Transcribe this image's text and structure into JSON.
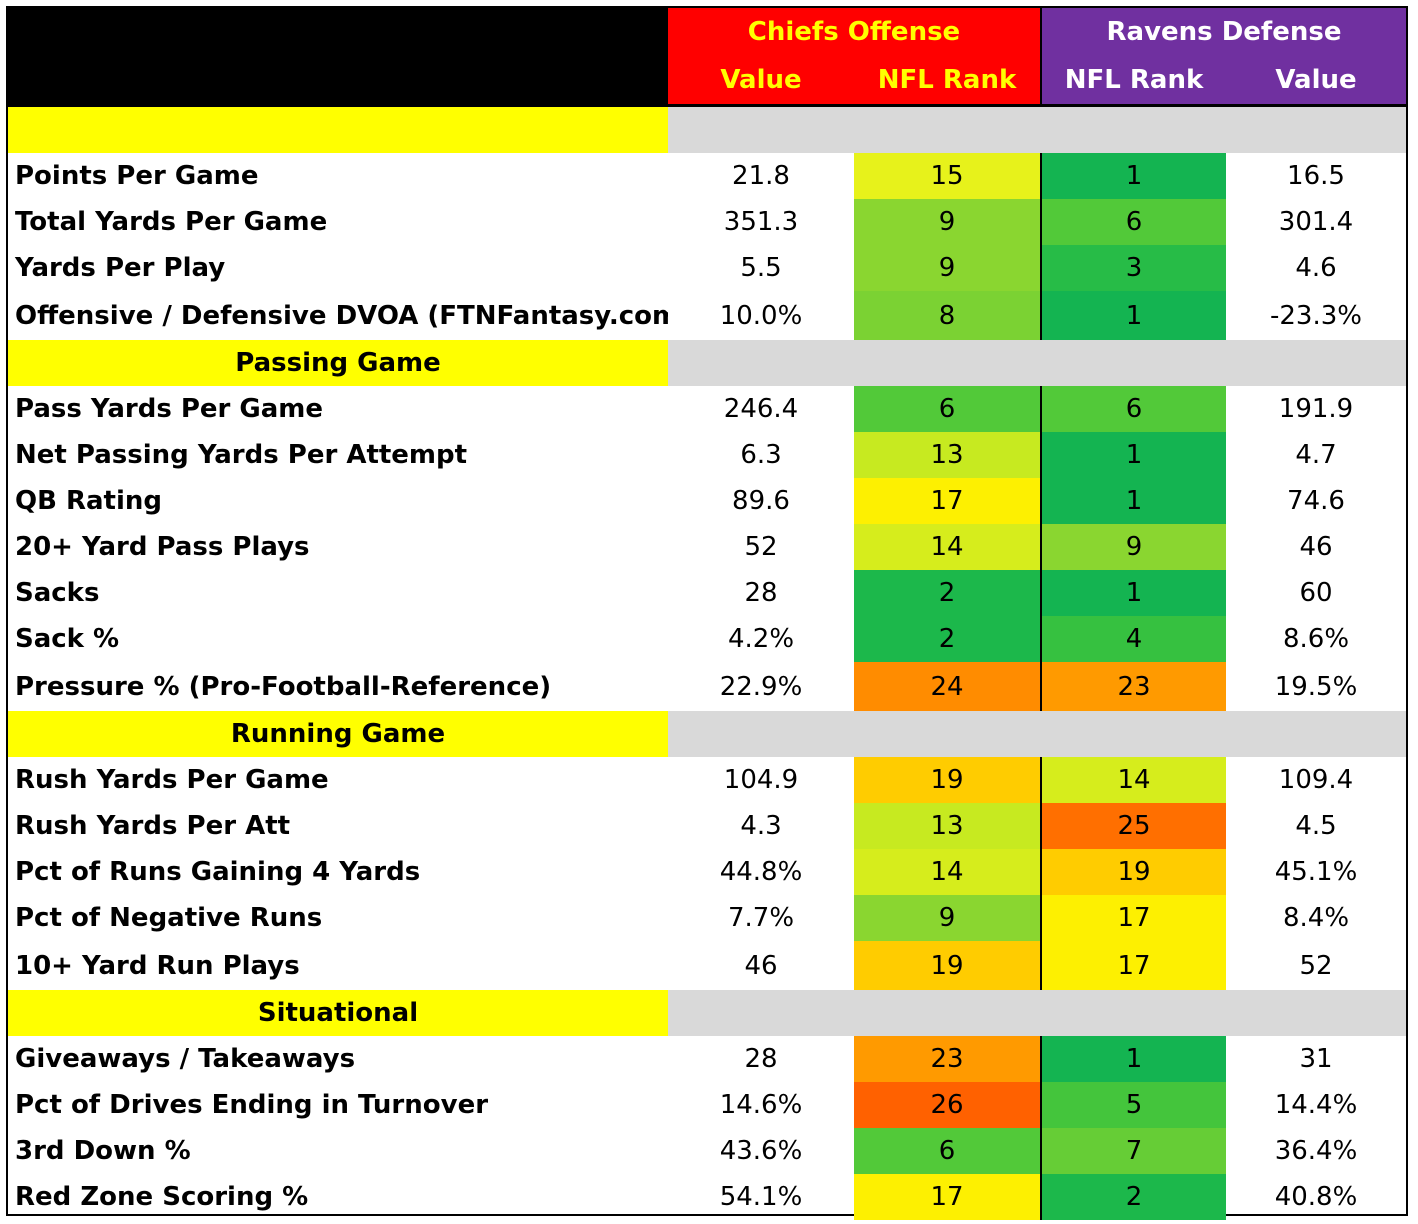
{
  "header": {
    "offense_team": "Chiefs Offense",
    "defense_team": "Ravens Defense",
    "offense_value_label": "Value",
    "offense_rank_label": "NFL Rank",
    "defense_rank_label": "NFL Rank",
    "defense_value_label": "Value"
  },
  "colors": {
    "header_black": "#000000",
    "chiefs_red": "#ff0000",
    "chiefs_text": "#ffff00",
    "ravens_purple": "#7030a0",
    "ravens_text": "#ffffff",
    "section_yellow": "#ffff00",
    "section_gray": "#d9d9d9"
  },
  "sections": [
    {
      "title": "",
      "rows": [
        {
          "stat": "Points Per Game",
          "off_value": "21.8",
          "off_rank": "15",
          "def_rank": "1",
          "def_value": "16.5",
          "off_color": "#e7f21b",
          "def_color": "#14b451"
        },
        {
          "stat": "Total Yards Per Game",
          "off_value": "351.3",
          "off_rank": "9",
          "def_rank": "6",
          "def_value": "301.4",
          "off_color": "#8ad630",
          "def_color": "#52c939"
        },
        {
          "stat": "Yards Per Play",
          "off_value": "5.5",
          "off_rank": "9",
          "def_rank": "3",
          "def_value": "4.6",
          "off_color": "#8ad630",
          "def_color": "#27bc47"
        },
        {
          "stat": "Offensive / Defensive DVOA (FTNFantasy.com)",
          "off_value": "10.0%",
          "off_rank": "8",
          "def_rank": "1",
          "def_value": "-23.3%",
          "off_color": "#7bd233",
          "def_color": "#14b451"
        }
      ]
    },
    {
      "title": "Passing Game",
      "rows": [
        {
          "stat": "Pass Yards Per Game",
          "off_value": "246.4",
          "off_rank": "6",
          "def_rank": "6",
          "def_value": "191.9",
          "off_color": "#52c939",
          "def_color": "#52c939"
        },
        {
          "stat": "Net Passing Yards Per Attempt",
          "off_value": "6.3",
          "off_rank": "13",
          "def_rank": "1",
          "def_value": "4.7",
          "off_color": "#c7ea20",
          "def_color": "#14b451"
        },
        {
          "stat": "QB Rating",
          "off_value": "89.6",
          "off_rank": "17",
          "def_rank": "1",
          "def_value": "74.6",
          "off_color": "#fdf001",
          "def_color": "#14b451"
        },
        {
          "stat": "20+ Yard Pass Plays",
          "off_value": "52",
          "off_rank": "14",
          "def_rank": "9",
          "def_value": "46",
          "off_color": "#d6ed1c",
          "def_color": "#8ad630"
        },
        {
          "stat": "Sacks",
          "off_value": "28",
          "off_rank": "2",
          "def_rank": "1",
          "def_value": "60",
          "off_color": "#1cb84b",
          "def_color": "#14b451"
        },
        {
          "stat": "Sack %",
          "off_value": "4.2%",
          "off_rank": "2",
          "def_rank": "4",
          "def_value": "8.6%",
          "off_color": "#1cb84b",
          "def_color": "#36c140"
        },
        {
          "stat": "Pressure % (Pro-Football-Reference)",
          "off_value": "22.9%",
          "off_rank": "24",
          "def_rank": "23",
          "def_value": "19.5%",
          "off_color": "#ff8c00",
          "def_color": "#ff9a00"
        }
      ]
    },
    {
      "title": "Running Game",
      "rows": [
        {
          "stat": "Rush Yards Per Game",
          "off_value": "104.9",
          "off_rank": "19",
          "def_rank": "14",
          "def_value": "109.4",
          "off_color": "#ffcc00",
          "def_color": "#d6ed1c"
        },
        {
          "stat": "Rush Yards Per Att",
          "off_value": "4.3",
          "off_rank": "13",
          "def_rank": "25",
          "def_value": "4.5",
          "off_color": "#c7ea20",
          "def_color": "#ff6f00"
        },
        {
          "stat": "Pct of Runs Gaining 4 Yards",
          "off_value": "44.8%",
          "off_rank": "14",
          "def_rank": "19",
          "def_value": "45.1%",
          "off_color": "#d6ed1c",
          "def_color": "#ffcc00"
        },
        {
          "stat": "Pct of Negative Runs",
          "off_value": "7.7%",
          "off_rank": "9",
          "def_rank": "17",
          "def_value": "8.4%",
          "off_color": "#8ad630",
          "def_color": "#fdf001"
        },
        {
          "stat": "10+ Yard Run Plays",
          "off_value": "46",
          "off_rank": "19",
          "def_rank": "17",
          "def_value": "52",
          "off_color": "#ffcc00",
          "def_color": "#fdf001"
        }
      ]
    },
    {
      "title": "Situational",
      "rows": [
        {
          "stat": "Giveaways / Takeaways",
          "off_value": "28",
          "off_rank": "23",
          "def_rank": "1",
          "def_value": "31",
          "off_color": "#ff9a00",
          "def_color": "#14b451"
        },
        {
          "stat": "Pct of Drives Ending in Turnover",
          "off_value": "14.6%",
          "off_rank": "26",
          "def_rank": "5",
          "def_value": "14.4%",
          "off_color": "#ff6100",
          "def_color": "#44c53c"
        },
        {
          "stat": "3rd Down %",
          "off_value": "43.6%",
          "off_rank": "6",
          "def_rank": "7",
          "def_value": "36.4%",
          "off_color": "#52c939",
          "def_color": "#66cd36"
        },
        {
          "stat": "Red Zone Scoring %",
          "off_value": "54.1%",
          "off_rank": "17",
          "def_rank": "2",
          "def_value": "40.8%",
          "off_color": "#fdf001",
          "def_color": "#1cb84b"
        }
      ]
    }
  ]
}
